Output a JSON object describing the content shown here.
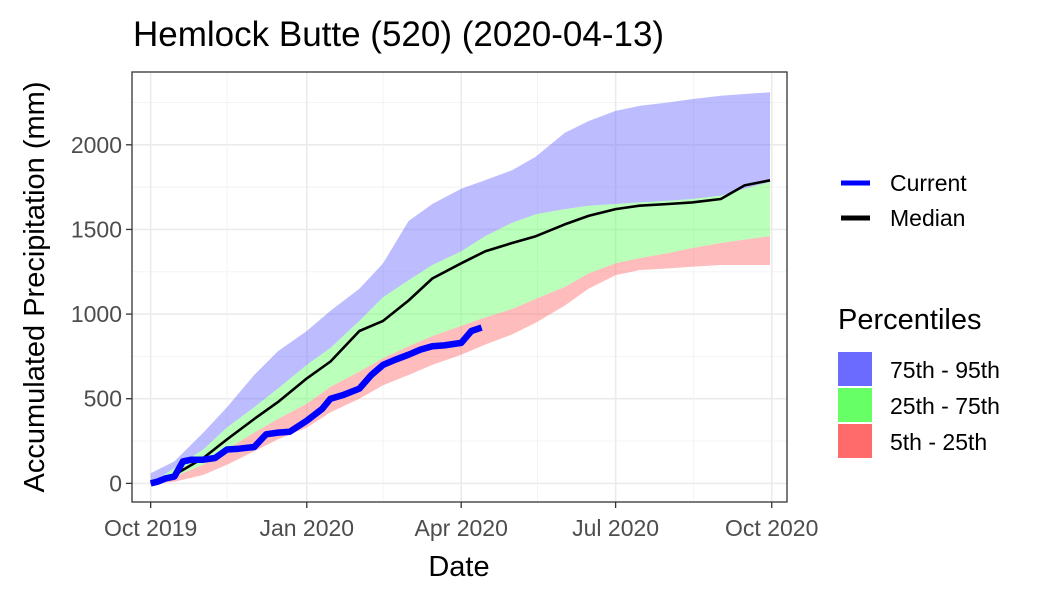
{
  "chart_data": {
    "type": "area",
    "title": "Hemlock Butte (520) (2020-04-13)",
    "xlabel": "Date",
    "ylabel": "Accumulated Precipitation (mm)",
    "x_ticks": [
      "Oct 2019",
      "Jan 2020",
      "Apr 2020",
      "Jul 2020",
      "Oct 2020"
    ],
    "y_ticks": [
      0,
      500,
      1000,
      1500,
      2000
    ],
    "xlim": [
      "2019-09-20",
      "2020-10-10"
    ],
    "ylim": [
      -110,
      2430
    ],
    "grid": true,
    "legend_position": "right",
    "x": [
      "2019-10-01",
      "2019-10-15",
      "2019-11-01",
      "2019-11-15",
      "2019-12-01",
      "2019-12-15",
      "2020-01-01",
      "2020-01-15",
      "2020-02-01",
      "2020-02-15",
      "2020-03-01",
      "2020-03-15",
      "2020-04-01",
      "2020-04-15",
      "2020-05-01",
      "2020-05-15",
      "2020-06-01",
      "2020-06-15",
      "2020-07-01",
      "2020-07-15",
      "2020-08-01",
      "2020-08-15",
      "2020-09-01",
      "2020-09-15",
      "2020-09-30"
    ],
    "bands": [
      {
        "name": "75th - 95th",
        "color": "#6b6bff",
        "low": [
          0,
          90,
          200,
          330,
          450,
          560,
          700,
          800,
          960,
          1100,
          1200,
          1290,
          1370,
          1460,
          1540,
          1590,
          1620,
          1640,
          1650,
          1660,
          1670,
          1680,
          1700,
          1740,
          1780
        ],
        "high": [
          60,
          130,
          300,
          450,
          640,
          780,
          900,
          1020,
          1150,
          1300,
          1550,
          1650,
          1740,
          1790,
          1850,
          1930,
          2070,
          2140,
          2200,
          2230,
          2250,
          2270,
          2290,
          2300,
          2310
        ]
      },
      {
        "name": "25th - 75th",
        "color": "#66ff66",
        "low": [
          0,
          40,
          110,
          200,
          300,
          380,
          470,
          570,
          660,
          740,
          810,
          870,
          930,
          980,
          1030,
          1090,
          1160,
          1240,
          1300,
          1330,
          1360,
          1390,
          1420,
          1440,
          1460
        ],
        "high": [
          0,
          90,
          200,
          330,
          450,
          560,
          700,
          800,
          960,
          1100,
          1200,
          1290,
          1370,
          1460,
          1540,
          1590,
          1620,
          1640,
          1650,
          1660,
          1670,
          1680,
          1700,
          1740,
          1780
        ]
      },
      {
        "name": "5th - 25th",
        "color": "#ff6b6b",
        "low": [
          0,
          10,
          50,
          110,
          190,
          260,
          330,
          420,
          500,
          580,
          640,
          700,
          760,
          820,
          880,
          950,
          1050,
          1150,
          1230,
          1260,
          1270,
          1280,
          1290,
          1290,
          1290
        ],
        "high": [
          0,
          40,
          110,
          200,
          300,
          380,
          470,
          570,
          660,
          740,
          810,
          870,
          930,
          980,
          1030,
          1090,
          1160,
          1240,
          1300,
          1330,
          1360,
          1390,
          1420,
          1440,
          1460
        ]
      }
    ],
    "series": [
      {
        "name": "Median",
        "color": "#000000",
        "x": [
          "2019-10-01",
          "2019-10-15",
          "2019-11-01",
          "2019-11-15",
          "2019-12-01",
          "2019-12-15",
          "2020-01-01",
          "2020-01-15",
          "2020-02-01",
          "2020-02-15",
          "2020-03-01",
          "2020-03-15",
          "2020-04-01",
          "2020-04-15",
          "2020-05-01",
          "2020-05-15",
          "2020-06-01",
          "2020-06-15",
          "2020-07-01",
          "2020-07-15",
          "2020-08-01",
          "2020-08-15",
          "2020-09-01",
          "2020-09-15",
          "2020-09-30"
        ],
        "values": [
          0,
          50,
          150,
          260,
          380,
          480,
          620,
          720,
          900,
          960,
          1080,
          1210,
          1300,
          1370,
          1420,
          1460,
          1530,
          1580,
          1620,
          1640,
          1650,
          1660,
          1680,
          1760,
          1790
        ]
      },
      {
        "name": "Current",
        "color": "#0000ff",
        "x": [
          "2019-10-01",
          "2019-10-05",
          "2019-10-10",
          "2019-10-15",
          "2019-10-20",
          "2019-10-25",
          "2019-11-01",
          "2019-11-08",
          "2019-11-15",
          "2019-11-22",
          "2019-12-01",
          "2019-12-08",
          "2019-12-15",
          "2019-12-22",
          "2020-01-01",
          "2020-01-10",
          "2020-01-15",
          "2020-01-22",
          "2020-02-01",
          "2020-02-08",
          "2020-02-15",
          "2020-02-22",
          "2020-03-01",
          "2020-03-08",
          "2020-03-15",
          "2020-03-22",
          "2020-04-01",
          "2020-04-07",
          "2020-04-13"
        ],
        "values": [
          0,
          10,
          30,
          40,
          130,
          140,
          140,
          150,
          200,
          205,
          215,
          290,
          300,
          305,
          370,
          440,
          500,
          520,
          560,
          640,
          700,
          730,
          760,
          790,
          810,
          815,
          830,
          900,
          920
        ]
      }
    ]
  }
}
